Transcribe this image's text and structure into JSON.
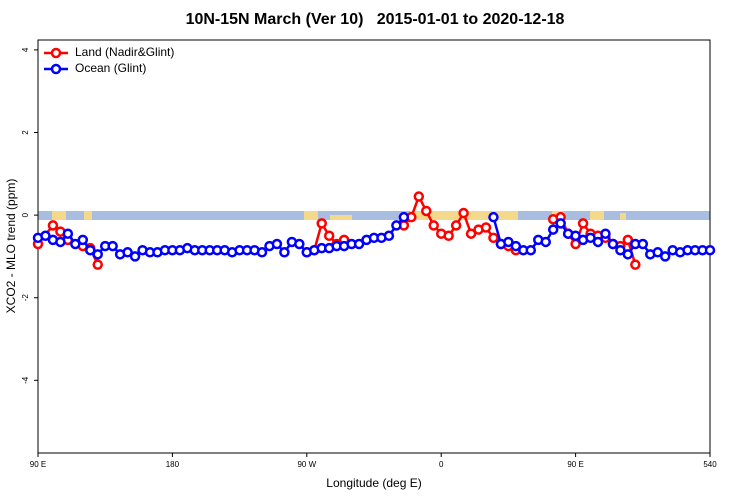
{
  "chart_data": {
    "type": "line",
    "title": "10N-15N March (Ver 10)   2015-01-01 to 2020-12-18",
    "x_label": "Longitude (deg E)",
    "y_label": "XCO2 - MLO trend (ppm)",
    "xlim": [
      90,
      540
    ],
    "ylim": [
      -5.76,
      4.24
    ],
    "xticks": [
      {
        "value": 90,
        "label": "90 E"
      },
      180,
      {
        "value": 270,
        "label": "90 W"
      },
      {
        "value": 360,
        "label": "0"
      },
      {
        "value": 450,
        "label": "90 E"
      },
      540
    ],
    "yticks": [
      -4,
      -2,
      0,
      2,
      4
    ],
    "legend": "top-left",
    "series": [
      {
        "name": "Land (Nadir&Glint)",
        "color": "#ff0000",
        "x": [
          90,
          100,
          105,
          110,
          120,
          125,
          130,
          null,
          270,
          275,
          280,
          285,
          290,
          295,
          null,
          335,
          340,
          345,
          350,
          355,
          360,
          365,
          370,
          375,
          380,
          385,
          390,
          395,
          400,
          405,
          410,
          null,
          435,
          440,
          445,
          450,
          455,
          460,
          465,
          470,
          475,
          480,
          485,
          490
        ],
        "values": [
          -0.7,
          -0.25,
          -0.4,
          -0.6,
          -0.75,
          -0.8,
          -1.2,
          null,
          -0.9,
          -0.85,
          -0.2,
          -0.5,
          -0.7,
          -0.6,
          null,
          -0.25,
          -0.05,
          0.45,
          0.1,
          -0.25,
          -0.45,
          -0.5,
          -0.25,
          0.05,
          -0.45,
          -0.35,
          -0.3,
          -0.55,
          -0.7,
          -0.75,
          -0.85,
          null,
          -0.1,
          -0.05,
          -0.45,
          -0.7,
          -0.2,
          -0.45,
          -0.5,
          -0.55,
          -0.7,
          -0.75,
          -0.6,
          -1.2
        ]
      },
      {
        "name": "Ocean (Glint)",
        "color": "#0000ff",
        "x": [
          90,
          95,
          100,
          105,
          110,
          115,
          120,
          125,
          130,
          135,
          140,
          145,
          150,
          155,
          160,
          165,
          170,
          175,
          180,
          185,
          190,
          195,
          200,
          205,
          210,
          215,
          220,
          225,
          230,
          235,
          240,
          245,
          250,
          255,
          260,
          265,
          270,
          275,
          280,
          285,
          290,
          295,
          300,
          305,
          310,
          315,
          320,
          325,
          330,
          335,
          null,
          395,
          400,
          405,
          410,
          415,
          420,
          425,
          430,
          435,
          440,
          445,
          450,
          455,
          460,
          465,
          470,
          475,
          480,
          485,
          490,
          495,
          500,
          505,
          510,
          515,
          520,
          525,
          530,
          535,
          540
        ],
        "values": [
          -0.55,
          -0.5,
          -0.6,
          -0.65,
          -0.45,
          -0.7,
          -0.6,
          -0.85,
          -0.95,
          -0.75,
          -0.75,
          -0.95,
          -0.9,
          -1.0,
          -0.85,
          -0.9,
          -0.9,
          -0.85,
          -0.85,
          -0.85,
          -0.8,
          -0.85,
          -0.85,
          -0.85,
          -0.85,
          -0.85,
          -0.9,
          -0.85,
          -0.85,
          -0.85,
          -0.9,
          -0.75,
          -0.7,
          -0.9,
          -0.65,
          -0.7,
          -0.9,
          -0.85,
          -0.8,
          -0.8,
          -0.75,
          -0.75,
          -0.7,
          -0.7,
          -0.6,
          -0.55,
          -0.55,
          -0.5,
          -0.25,
          -0.05,
          null,
          -0.05,
          -0.7,
          -0.65,
          -0.75,
          -0.85,
          -0.85,
          -0.6,
          -0.65,
          -0.35,
          -0.2,
          -0.45,
          -0.5,
          -0.6,
          -0.55,
          -0.65,
          -0.45,
          -0.7,
          -0.85,
          -0.95,
          -0.7,
          -0.7,
          -0.95,
          -0.9,
          -1.0,
          -0.85,
          -0.9,
          -0.85,
          -0.85,
          -0.85,
          -0.85
        ]
      }
    ]
  }
}
